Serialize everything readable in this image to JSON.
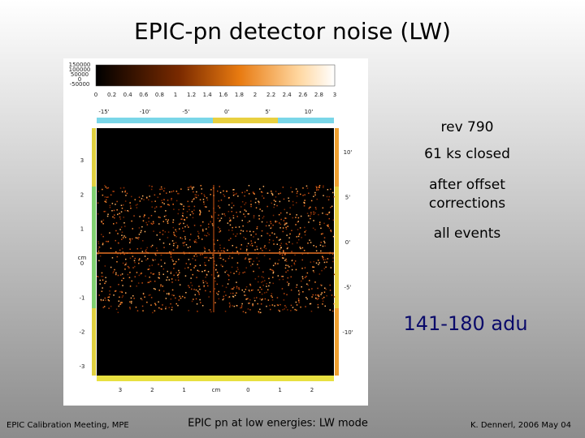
{
  "header": {
    "title": "EPIC-pn detector noise  (LW)"
  },
  "figure": {
    "colorbar_side_labels": [
      "150000",
      "100000",
      "50000",
      "0",
      "-50000"
    ],
    "colorbar_ticks": [
      "0",
      "0.2",
      "0.4",
      "0.6",
      "0.8",
      "1",
      "1.2",
      "1.4",
      "1.6",
      "1.8",
      "2",
      "2.2",
      "2.4",
      "2.6",
      "2.8",
      "3"
    ],
    "top_axis_ticks": [
      "-15'",
      "-10'",
      "-5'",
      "0'",
      "5'",
      "10'"
    ],
    "left_axis_ticks": [
      "3",
      "2",
      "1",
      "0",
      "-1",
      "-2",
      "-3"
    ],
    "left_axis_label": "cm",
    "right_axis_ticks": [
      "10'",
      "5'",
      "0'",
      "-5'",
      "-10'"
    ],
    "bottom_axis_ticks": [
      "3",
      "2",
      "1",
      "cm",
      "0",
      "1",
      "2"
    ]
  },
  "notes": [
    "rev 790",
    "61 ks closed",
    "after offset",
    "corrections",
    "all events"
  ],
  "highlight": "141-180 adu",
  "footer": {
    "left": "EPIC Calibration Meeting, MPE",
    "center": "EPIC pn at low energies: LW mode",
    "right": "K. Dennerl, 2006 May 04"
  }
}
